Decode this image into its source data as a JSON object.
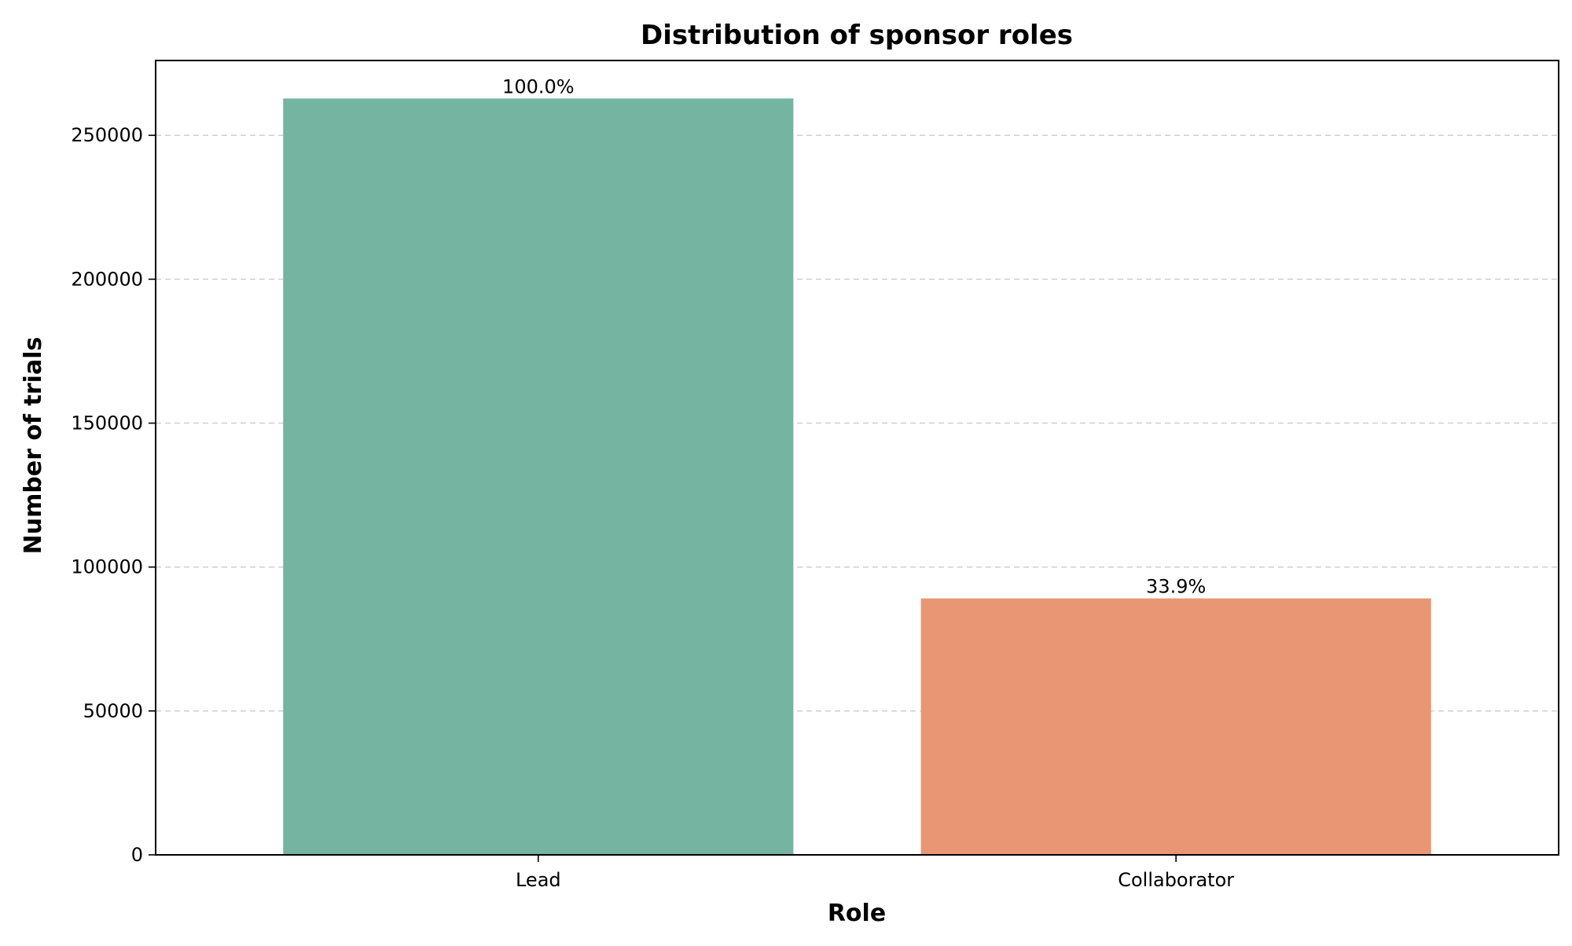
{
  "chart_data": {
    "type": "bar",
    "title": "Distribution of sponsor roles",
    "xlabel": "Role",
    "ylabel": "Number of trials",
    "categories": [
      "Lead",
      "Collaborator"
    ],
    "values": [
      262800,
      89100
    ],
    "data_labels": [
      "100.0%",
      "33.9%"
    ],
    "colors": [
      "#74b4a0",
      "#e89674"
    ],
    "ylim": [
      0,
      276000
    ],
    "yticks": [
      0,
      50000,
      100000,
      150000,
      200000,
      250000
    ],
    "ytick_labels": [
      "0",
      "50000",
      "100000",
      "150000",
      "200000",
      "250000"
    ],
    "grid": {
      "y": true,
      "x": false,
      "style": "dashed",
      "color": "#cfcfcf"
    }
  }
}
